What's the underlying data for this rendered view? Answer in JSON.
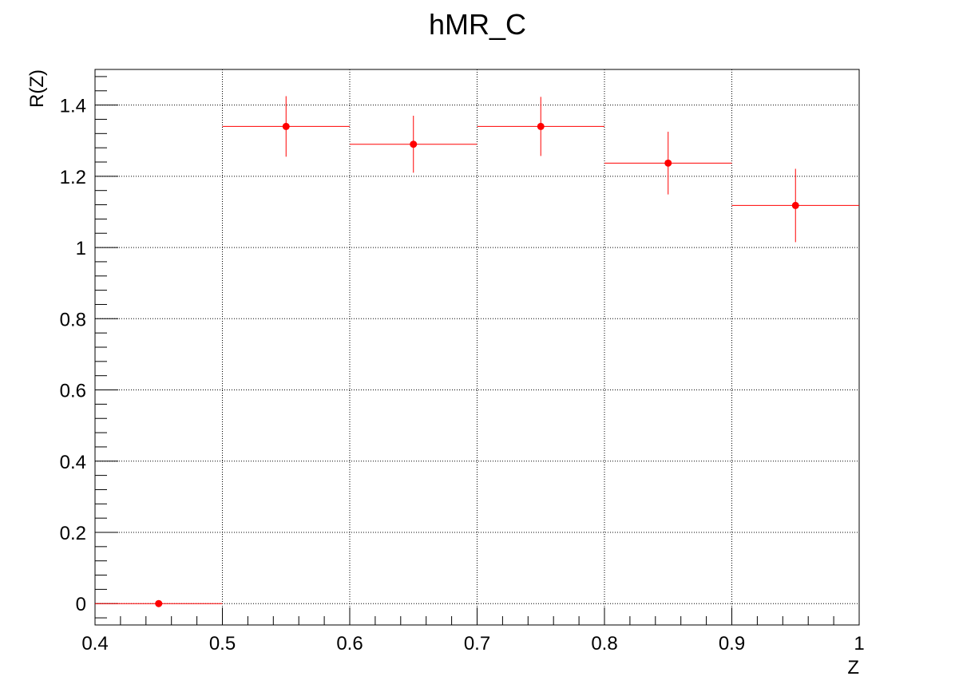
{
  "chart_data": {
    "type": "scatter",
    "title": "hMR_C",
    "xlabel": "Z",
    "ylabel": "R(Z)",
    "xlim": [
      0.4,
      1.0
    ],
    "ylim": [
      -0.06,
      1.5
    ],
    "grid": true,
    "x_ticks": [
      0.4,
      0.5,
      0.6,
      0.7,
      0.8,
      0.9,
      1.0
    ],
    "x_tick_labels": [
      "0.4",
      "0.5",
      "0.6",
      "0.7",
      "0.8",
      "0.9",
      "1"
    ],
    "y_ticks": [
      0,
      0.2,
      0.4,
      0.6,
      0.8,
      1.0,
      1.2,
      1.4
    ],
    "y_tick_labels": [
      "0",
      "0.2",
      "0.4",
      "0.6",
      "0.8",
      "1",
      "1.2",
      "1.4"
    ],
    "series": [
      {
        "color": "#ff0000",
        "points": [
          {
            "x": 0.45,
            "y": 0.0,
            "xerr": 0.05,
            "yerr": 0.0
          },
          {
            "x": 0.55,
            "y": 1.34,
            "xerr": 0.05,
            "yerr": 0.085
          },
          {
            "x": 0.65,
            "y": 1.29,
            "xerr": 0.05,
            "yerr": 0.08
          },
          {
            "x": 0.75,
            "y": 1.34,
            "xerr": 0.05,
            "yerr": 0.083
          },
          {
            "x": 0.85,
            "y": 1.237,
            "xerr": 0.05,
            "yerr": 0.088
          },
          {
            "x": 0.95,
            "y": 1.118,
            "xerr": 0.05,
            "yerr": 0.103
          }
        ]
      }
    ]
  }
}
